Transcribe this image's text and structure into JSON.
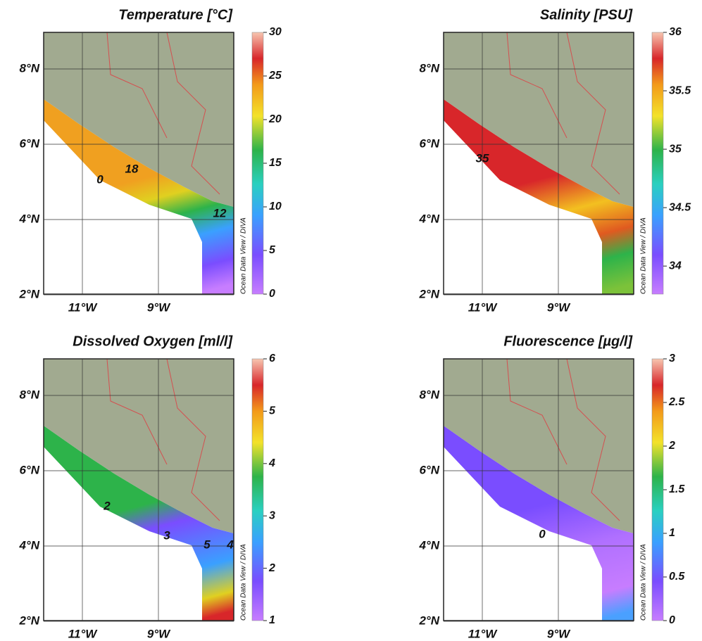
{
  "credit": "Ocean Data View / DIVA",
  "panels": [
    {
      "title": "Temperature [°C]",
      "yticks": [
        "8°N",
        "6°N",
        "4°N",
        "2°N"
      ],
      "xticks": [
        "11°W",
        "9°W"
      ],
      "colorbar": {
        "lim": [
          0,
          30
        ],
        "ticks": [
          0,
          5,
          10,
          15,
          20,
          25,
          30
        ]
      },
      "contour_labels": [
        "18",
        "12",
        "0"
      ]
    },
    {
      "title": "Salinity [PSU]",
      "yticks": [
        "8°N",
        "6°N",
        "4°N",
        "2°N"
      ],
      "xticks": [
        "11°W",
        "9°W"
      ],
      "colorbar": {
        "lim": [
          33.76,
          36
        ],
        "ticks": [
          34,
          34.5,
          35,
          35.5,
          36
        ]
      },
      "contour_labels": [
        "35"
      ]
    },
    {
      "title": "Dissolved Oxygen [ml/l]",
      "yticks": [
        "8°N",
        "6°N",
        "4°N",
        "2°N"
      ],
      "xticks": [
        "11°W",
        "9°W"
      ],
      "colorbar": {
        "lim": [
          1,
          6
        ],
        "ticks": [
          1,
          2,
          3,
          4,
          5,
          6
        ]
      },
      "contour_labels": [
        "2",
        "3",
        "5",
        "4"
      ]
    },
    {
      "title": "Fluorescence [µg/l]",
      "yticks": [
        "8°N",
        "6°N",
        "4°N",
        "2°N"
      ],
      "xticks": [
        "11°W",
        "9°W"
      ],
      "colorbar": {
        "lim": [
          0,
          3
        ],
        "ticks": [
          0,
          0.5,
          1,
          1.5,
          2,
          2.5,
          3
        ]
      },
      "contour_labels": [
        "0"
      ]
    }
  ]
}
